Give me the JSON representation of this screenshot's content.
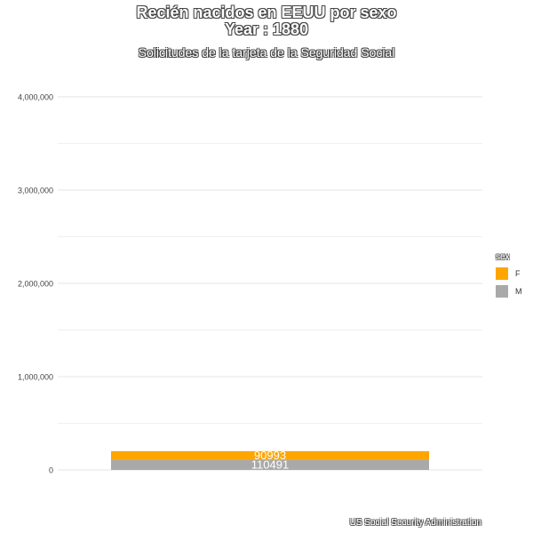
{
  "chart_data": {
    "type": "bar",
    "title_line1": "Recién nacidos en EEUU por sexo",
    "title_line2": "Year : 1880",
    "subtitle": "Solicitudes de la tarjeta de la Seguridad Social",
    "caption": "US Social Security Administration",
    "xlabel": "",
    "ylabel": "",
    "ylim": [
      0,
      4200000
    ],
    "yticks": [
      0,
      1000000,
      2000000,
      3000000,
      4000000
    ],
    "ytick_labels": [
      "0",
      "1,000,000",
      "2,000,000",
      "3,000,000",
      "4,000,000"
    ],
    "stacked": true,
    "grid": true,
    "legend": {
      "title": "sex",
      "position": "right"
    },
    "series": [
      {
        "name": "M",
        "value": 110491,
        "label": "110491",
        "color": "#a9a9a9"
      },
      {
        "name": "F",
        "value": 90993,
        "label": "90993",
        "color": "#ffa500"
      }
    ]
  }
}
